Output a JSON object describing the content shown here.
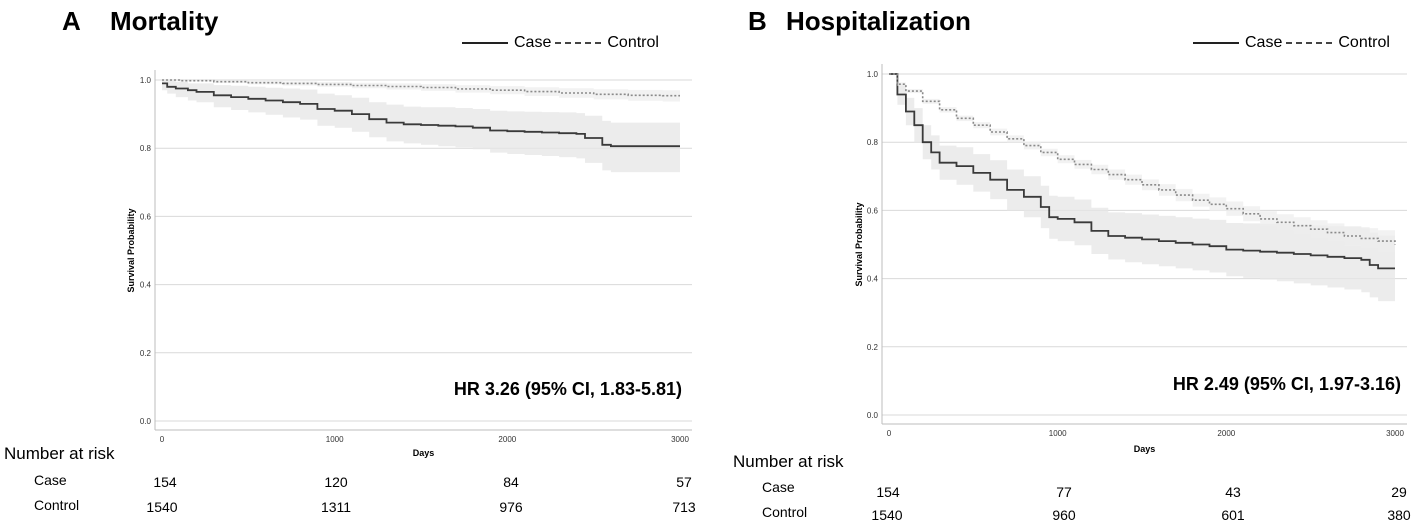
{
  "chart_data": [
    {
      "type": "line",
      "panel": "A",
      "title": "Mortality",
      "xlabel": "Days",
      "ylabel": "Survival Probability",
      "xlim": [
        0,
        3050
      ],
      "ylim": [
        0,
        1.0
      ],
      "xticks": [
        0,
        1000,
        2000,
        3000
      ],
      "xtick_labels": [
        "0",
        "1000",
        "2000",
        "3000"
      ],
      "yticks": [
        0.0,
        0.2,
        0.4,
        0.6,
        0.8,
        1.0
      ],
      "ytick_labels": [
        "0.0",
        "0.2",
        "0.4",
        "0.6",
        "0.8",
        "1.0"
      ],
      "annotation": "HR 3.26 (95% CI, 1.83-5.81)",
      "legend": [
        "Case",
        "Control"
      ],
      "series": [
        {
          "name": "Case",
          "style": "solid",
          "x": [
            0,
            30,
            80,
            150,
            200,
            300,
            400,
            500,
            600,
            700,
            800,
            900,
            1000,
            1100,
            1200,
            1300,
            1400,
            1500,
            1600,
            1700,
            1800,
            1900,
            2000,
            2100,
            2200,
            2300,
            2400,
            2450,
            2550,
            2600,
            2700,
            2800,
            2900,
            3000
          ],
          "values": [
            0.99,
            0.98,
            0.975,
            0.97,
            0.965,
            0.955,
            0.95,
            0.945,
            0.94,
            0.935,
            0.93,
            0.915,
            0.91,
            0.9,
            0.885,
            0.875,
            0.87,
            0.868,
            0.866,
            0.864,
            0.86,
            0.852,
            0.85,
            0.848,
            0.846,
            0.844,
            0.842,
            0.83,
            0.81,
            0.806,
            0.806,
            0.806,
            0.806,
            0.806
          ],
          "ci_low": [
            0.97,
            0.96,
            0.95,
            0.94,
            0.935,
            0.92,
            0.912,
            0.905,
            0.898,
            0.89,
            0.884,
            0.866,
            0.86,
            0.848,
            0.832,
            0.82,
            0.814,
            0.81,
            0.806,
            0.803,
            0.797,
            0.787,
            0.783,
            0.78,
            0.777,
            0.774,
            0.77,
            0.757,
            0.735,
            0.73,
            0.73,
            0.73,
            0.73,
            0.73
          ],
          "ci_high": [
            1.0,
            1.0,
            0.995,
            0.99,
            0.99,
            0.985,
            0.983,
            0.98,
            0.977,
            0.975,
            0.972,
            0.96,
            0.955,
            0.948,
            0.935,
            0.928,
            0.922,
            0.92,
            0.92,
            0.918,
            0.915,
            0.91,
            0.908,
            0.907,
            0.906,
            0.905,
            0.903,
            0.895,
            0.88,
            0.875,
            0.875,
            0.875,
            0.875,
            0.875
          ]
        },
        {
          "name": "Control",
          "style": "dashed",
          "x": [
            0,
            100,
            300,
            500,
            700,
            900,
            1100,
            1300,
            1500,
            1700,
            1900,
            2100,
            2300,
            2500,
            2700,
            2900,
            3000
          ],
          "values": [
            1.0,
            0.998,
            0.995,
            0.992,
            0.99,
            0.987,
            0.984,
            0.981,
            0.978,
            0.974,
            0.97,
            0.966,
            0.962,
            0.958,
            0.955,
            0.954,
            0.954
          ],
          "ci_low": [
            1.0,
            0.996,
            0.991,
            0.987,
            0.984,
            0.98,
            0.976,
            0.972,
            0.968,
            0.963,
            0.958,
            0.953,
            0.948,
            0.943,
            0.939,
            0.937,
            0.937
          ],
          "ci_high": [
            1.0,
            1.0,
            0.999,
            0.997,
            0.996,
            0.994,
            0.992,
            0.99,
            0.988,
            0.985,
            0.982,
            0.979,
            0.976,
            0.973,
            0.971,
            0.97,
            0.97
          ]
        }
      ],
      "risk_table": {
        "title": "Number at risk",
        "rows": [
          {
            "label": "Case",
            "values": [
              "154",
              "120",
              "84",
              "57"
            ]
          },
          {
            "label": "Control",
            "values": [
              "1540",
              "1311",
              "976",
              "713"
            ]
          }
        ]
      }
    },
    {
      "type": "line",
      "panel": "B",
      "title": "Hospitalization",
      "xlabel": "Days",
      "ylabel": "Survival Probability",
      "xlim": [
        0,
        3050
      ],
      "ylim": [
        0,
        1.0
      ],
      "xticks": [
        0,
        1000,
        2000,
        3000
      ],
      "xtick_labels": [
        "0",
        "1000",
        "2000",
        "3000"
      ],
      "yticks": [
        0.0,
        0.2,
        0.4,
        0.6,
        0.8,
        1.0
      ],
      "ytick_labels": [
        "0.0",
        "0.2",
        "0.4",
        "0.6",
        "0.8",
        "1.0"
      ],
      "annotation": "HR 2.49 (95% CI, 1.97-3.16)",
      "legend": [
        "Case",
        "Control"
      ],
      "series": [
        {
          "name": "Case",
          "style": "solid",
          "x": [
            0,
            50,
            100,
            150,
            200,
            250,
            300,
            400,
            500,
            600,
            700,
            800,
            900,
            950,
            1000,
            1100,
            1200,
            1300,
            1400,
            1500,
            1600,
            1700,
            1800,
            1900,
            2000,
            2100,
            2200,
            2300,
            2400,
            2500,
            2600,
            2700,
            2800,
            2850,
            2900,
            3000
          ],
          "values": [
            1.0,
            0.94,
            0.89,
            0.85,
            0.8,
            0.77,
            0.74,
            0.73,
            0.71,
            0.69,
            0.66,
            0.64,
            0.61,
            0.58,
            0.575,
            0.565,
            0.54,
            0.525,
            0.52,
            0.515,
            0.51,
            0.505,
            0.5,
            0.495,
            0.485,
            0.482,
            0.479,
            0.476,
            0.472,
            0.468,
            0.464,
            0.46,
            0.455,
            0.44,
            0.43,
            0.43
          ],
          "ci_low": [
            1.0,
            0.91,
            0.85,
            0.8,
            0.75,
            0.72,
            0.69,
            0.675,
            0.655,
            0.633,
            0.6,
            0.58,
            0.548,
            0.517,
            0.51,
            0.498,
            0.472,
            0.456,
            0.448,
            0.442,
            0.436,
            0.43,
            0.424,
            0.418,
            0.407,
            0.402,
            0.397,
            0.392,
            0.386,
            0.38,
            0.374,
            0.368,
            0.36,
            0.345,
            0.334,
            0.334
          ],
          "ci_high": [
            1.0,
            0.97,
            0.93,
            0.9,
            0.85,
            0.82,
            0.79,
            0.785,
            0.765,
            0.747,
            0.72,
            0.7,
            0.672,
            0.643,
            0.64,
            0.632,
            0.608,
            0.594,
            0.592,
            0.588,
            0.584,
            0.58,
            0.576,
            0.572,
            0.563,
            0.562,
            0.561,
            0.56,
            0.558,
            0.556,
            0.554,
            0.552,
            0.55,
            0.535,
            0.526,
            0.526
          ]
        },
        {
          "name": "Control",
          "style": "dashed",
          "x": [
            0,
            50,
            100,
            200,
            300,
            400,
            500,
            600,
            700,
            800,
            900,
            1000,
            1100,
            1200,
            1300,
            1400,
            1500,
            1600,
            1700,
            1800,
            1900,
            2000,
            2100,
            2200,
            2300,
            2400,
            2500,
            2600,
            2700,
            2800,
            2900,
            3000
          ],
          "values": [
            1.0,
            0.97,
            0.95,
            0.92,
            0.895,
            0.87,
            0.85,
            0.83,
            0.81,
            0.79,
            0.77,
            0.75,
            0.735,
            0.72,
            0.705,
            0.69,
            0.675,
            0.66,
            0.645,
            0.63,
            0.618,
            0.605,
            0.59,
            0.575,
            0.565,
            0.555,
            0.545,
            0.535,
            0.525,
            0.518,
            0.51,
            0.5
          ],
          "ci_low": [
            1.0,
            0.965,
            0.944,
            0.913,
            0.887,
            0.862,
            0.841,
            0.82,
            0.8,
            0.779,
            0.759,
            0.738,
            0.722,
            0.706,
            0.69,
            0.675,
            0.659,
            0.643,
            0.627,
            0.611,
            0.598,
            0.584,
            0.568,
            0.552,
            0.541,
            0.53,
            0.519,
            0.508,
            0.496,
            0.488,
            0.478,
            0.466
          ],
          "ci_high": [
            1.0,
            0.975,
            0.956,
            0.927,
            0.903,
            0.878,
            0.859,
            0.84,
            0.82,
            0.801,
            0.781,
            0.762,
            0.748,
            0.734,
            0.72,
            0.705,
            0.691,
            0.677,
            0.663,
            0.649,
            0.638,
            0.626,
            0.612,
            0.598,
            0.589,
            0.58,
            0.571,
            0.562,
            0.554,
            0.548,
            0.542,
            0.534
          ]
        }
      ],
      "risk_table": {
        "title": "Number at risk",
        "rows": [
          {
            "label": "Case",
            "values": [
              "154",
              "77",
              "43",
              "29"
            ]
          },
          {
            "label": "Control",
            "values": [
              "1540",
              "960",
              "601",
              "380"
            ]
          }
        ]
      }
    }
  ]
}
